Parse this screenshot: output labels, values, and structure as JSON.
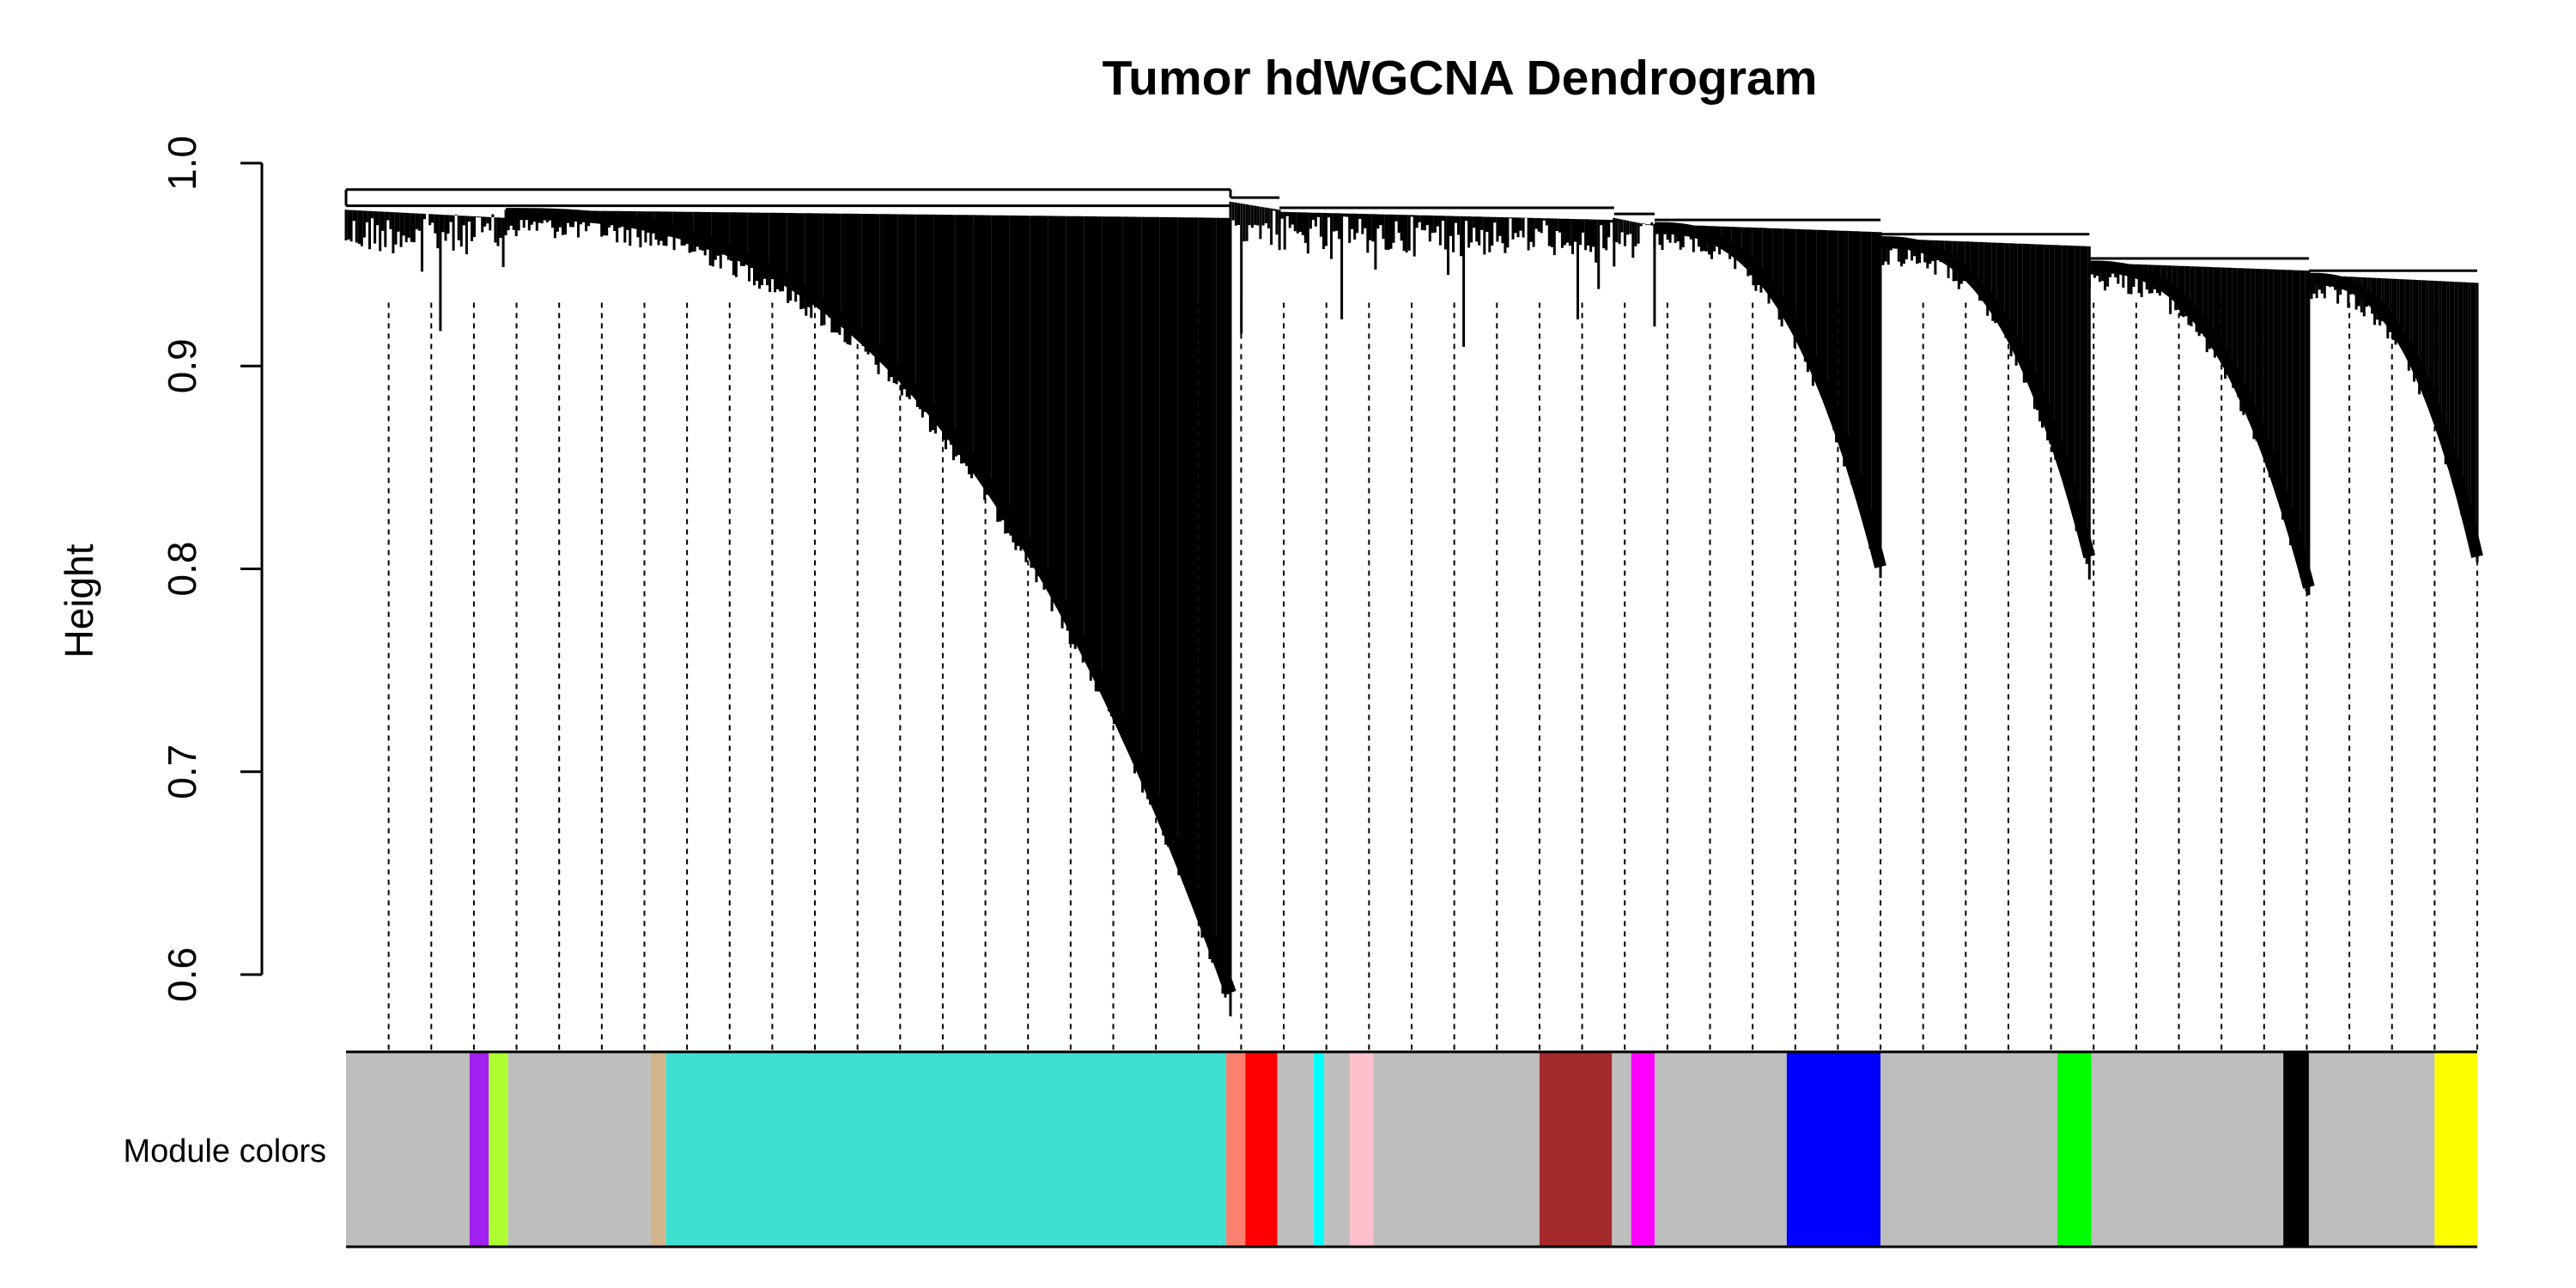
{
  "chart_data": {
    "type": "dendrogram",
    "title": "Tumor hdWGCNA Dendrogram",
    "ylabel": "Height",
    "xlabel": "",
    "ylim": [
      0.6,
      1.0
    ],
    "yticks": [
      0.6,
      0.7,
      0.8,
      0.9,
      1.0
    ],
    "ytick_labels": [
      "0.6",
      "0.7",
      "0.8",
      "0.9",
      "1.0"
    ],
    "grid": false,
    "color_bar_label": "Module colors",
    "branches": [
      {
        "name": "",
        "x_start": 0.0,
        "x_end": 0.075,
        "join_height": 0.979,
        "min_height": 0.9,
        "shape": "flat"
      },
      {
        "name": "",
        "x_start": 0.075,
        "x_end": 0.415,
        "join_height": 0.979,
        "min_height": 0.595,
        "shape": "curve"
      },
      {
        "name": "",
        "x_start": 0.415,
        "x_end": 0.438,
        "join_height": 0.983,
        "min_height": 0.89,
        "shape": "flat"
      },
      {
        "name": "",
        "x_start": 0.438,
        "x_end": 0.595,
        "join_height": 0.978,
        "min_height": 0.93,
        "shape": "flat"
      },
      {
        "name": "",
        "x_start": 0.595,
        "x_end": 0.614,
        "join_height": 0.975,
        "min_height": 0.91,
        "shape": "flat"
      },
      {
        "name": "",
        "x_start": 0.614,
        "x_end": 0.72,
        "join_height": 0.972,
        "min_height": 0.805,
        "shape": "curve"
      },
      {
        "name": "",
        "x_start": 0.72,
        "x_end": 0.818,
        "join_height": 0.965,
        "min_height": 0.81,
        "shape": "curve"
      },
      {
        "name": "",
        "x_start": 0.818,
        "x_end": 0.921,
        "join_height": 0.953,
        "min_height": 0.795,
        "shape": "curve"
      },
      {
        "name": "",
        "x_start": 0.921,
        "x_end": 1.0,
        "join_height": 0.947,
        "min_height": 0.81,
        "shape": "curve"
      }
    ],
    "top_merge_height": 0.987,
    "dashed_leader_count": 50,
    "module_colors": [
      {
        "color": "#bebebe",
        "start": 0.0,
        "end": 0.058
      },
      {
        "color": "#a020f0",
        "start": 0.058,
        "end": 0.067
      },
      {
        "color": "#adff2f",
        "start": 0.067,
        "end": 0.076
      },
      {
        "color": "#bebebe",
        "start": 0.076,
        "end": 0.143
      },
      {
        "color": "#d2b48c",
        "start": 0.143,
        "end": 0.15
      },
      {
        "color": "#40e0d0",
        "start": 0.15,
        "end": 0.413
      },
      {
        "color": "#fa8072",
        "start": 0.413,
        "end": 0.422
      },
      {
        "color": "#ff0000",
        "start": 0.422,
        "end": 0.437
      },
      {
        "color": "#bebebe",
        "start": 0.437,
        "end": 0.454
      },
      {
        "color": "#00ffff",
        "start": 0.454,
        "end": 0.459
      },
      {
        "color": "#bebebe",
        "start": 0.459,
        "end": 0.471
      },
      {
        "color": "#ffc0cb",
        "start": 0.471,
        "end": 0.482
      },
      {
        "color": "#bebebe",
        "start": 0.482,
        "end": 0.56
      },
      {
        "color": "#a52a2a",
        "start": 0.56,
        "end": 0.594
      },
      {
        "color": "#bebebe",
        "start": 0.594,
        "end": 0.603
      },
      {
        "color": "#ff00ff",
        "start": 0.603,
        "end": 0.614
      },
      {
        "color": "#bebebe",
        "start": 0.614,
        "end": 0.676
      },
      {
        "color": "#0000ff",
        "start": 0.676,
        "end": 0.72
      },
      {
        "color": "#bebebe",
        "start": 0.72,
        "end": 0.803
      },
      {
        "color": "#00ff00",
        "start": 0.803,
        "end": 0.819
      },
      {
        "color": "#bebebe",
        "start": 0.819,
        "end": 0.909
      },
      {
        "color": "#000000",
        "start": 0.909,
        "end": 0.921
      },
      {
        "color": "#bebebe",
        "start": 0.921,
        "end": 0.98
      },
      {
        "color": "#ffff00",
        "start": 0.98,
        "end": 1.0
      }
    ]
  }
}
